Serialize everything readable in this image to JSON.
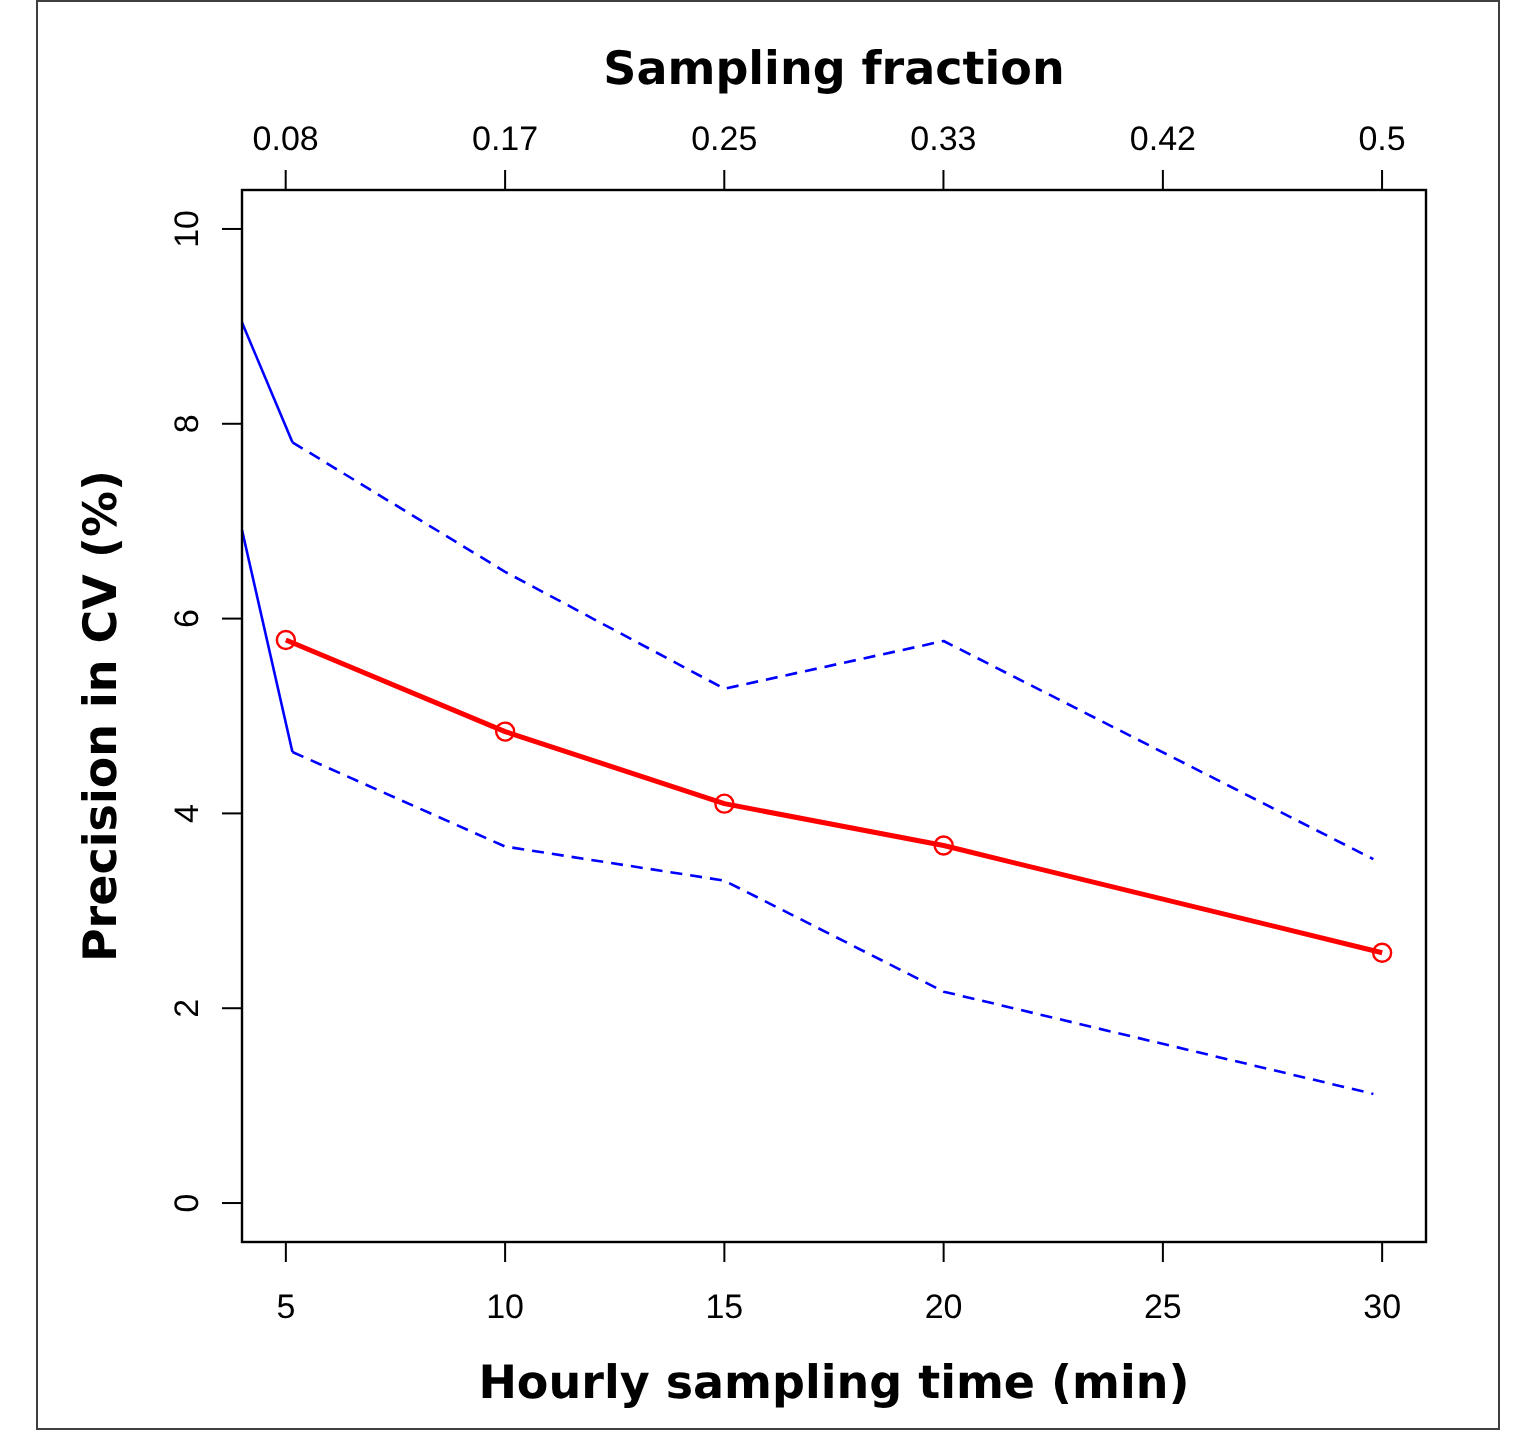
{
  "chart_data": {
    "type": "line",
    "xlabel": "Hourly sampling time (min)",
    "ylabel": "Precision in CV (%)",
    "x2label": "Sampling fraction",
    "xlim": [
      4,
      31
    ],
    "xticks": [
      5,
      10,
      15,
      20,
      25,
      30
    ],
    "x2lim": [
      0.0667,
      0.5167
    ],
    "x2ticks": [
      {
        "value": 0.0833,
        "label": "0.08"
      },
      {
        "value": 0.1667,
        "label": "0.17"
      },
      0.25,
      {
        "value": 0.3333,
        "label": "0.33"
      },
      {
        "value": 0.4167,
        "label": "0.42"
      },
      0.5
    ],
    "ylim": [
      -0.4,
      10.4
    ],
    "yticks": [
      0,
      2,
      4,
      6,
      8,
      10
    ],
    "grid": false,
    "series": [
      {
        "color": "#0000ff",
        "x": [
          4,
          5.15
        ],
        "values": [
          9.04,
          7.81
        ],
        "line_style": "solid",
        "marker": "none"
      },
      {
        "color": "#0000ff",
        "x": [
          4,
          5.15
        ],
        "values": [
          6.91,
          4.63
        ],
        "line_style": "solid",
        "marker": "none"
      },
      {
        "color": "#0000ff",
        "x": [
          5.15,
          10,
          15,
          20,
          29.8
        ],
        "values": [
          7.81,
          6.48,
          5.28,
          5.77,
          3.53
        ],
        "line_style": "dashed",
        "marker": "none"
      },
      {
        "color": "#0000ff",
        "x": [
          5.15,
          10,
          15,
          20,
          29.8
        ],
        "values": [
          4.63,
          3.66,
          3.31,
          2.17,
          1.12
        ],
        "line_style": "dashed",
        "marker": "none"
      },
      {
        "color": "#ff0000",
        "x": [
          5,
          10,
          15,
          20,
          30
        ],
        "values": [
          5.78,
          4.84,
          4.1,
          3.67,
          2.57
        ],
        "line_style": "solid",
        "marker": "circle"
      }
    ]
  }
}
